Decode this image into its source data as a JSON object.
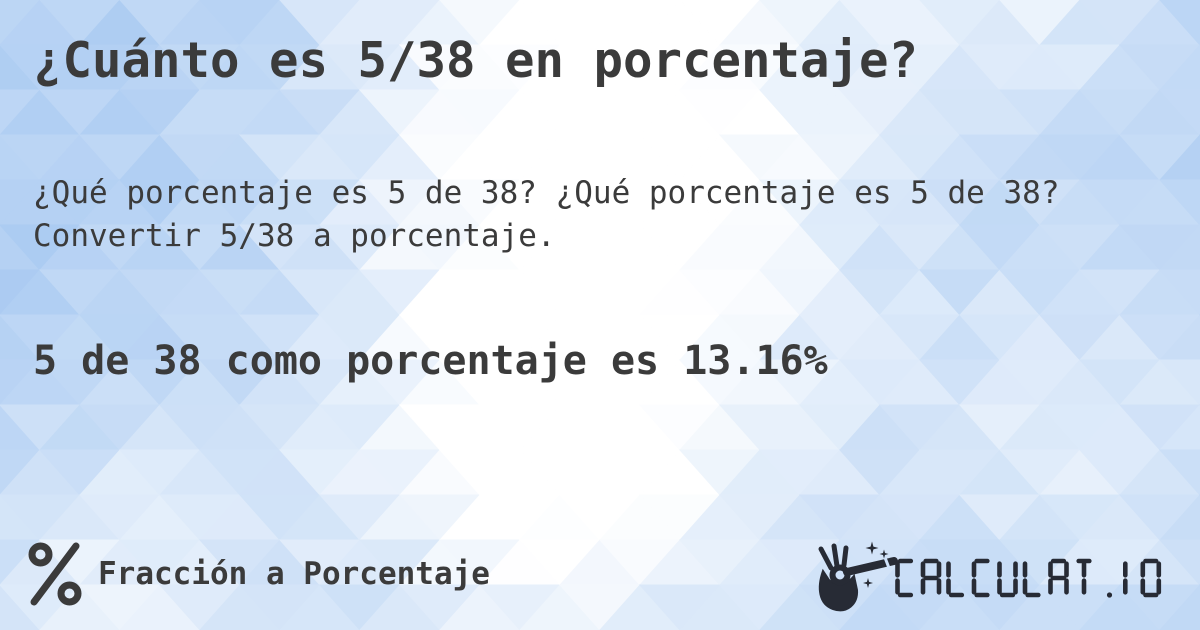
{
  "card": {
    "title": "¿Cuánto es 5/38 en porcentaje?",
    "description_lines": [
      "¿Qué porcentaje es 5 de 38? ¿Qué porcentaje es 5 de 38?",
      "Convertir 5/38 a porcentaje."
    ],
    "answer": "5 de 38 como porcentaje es 13.16%"
  },
  "footer": {
    "category": {
      "icon": "percent-icon",
      "label": "Fracción a Porcentaje"
    },
    "brand": {
      "icon": "magic-wand-hand-icon",
      "wordmark": "CALCULAT.IO"
    }
  },
  "colors": {
    "text": "#3b3b3b",
    "logo_ink": "#272b35",
    "wand_hole": "#cfe2fa",
    "background_base": "#bdd7f7",
    "triangle_blue": "#a6c8f1",
    "triangle_white": "#ffffff"
  }
}
